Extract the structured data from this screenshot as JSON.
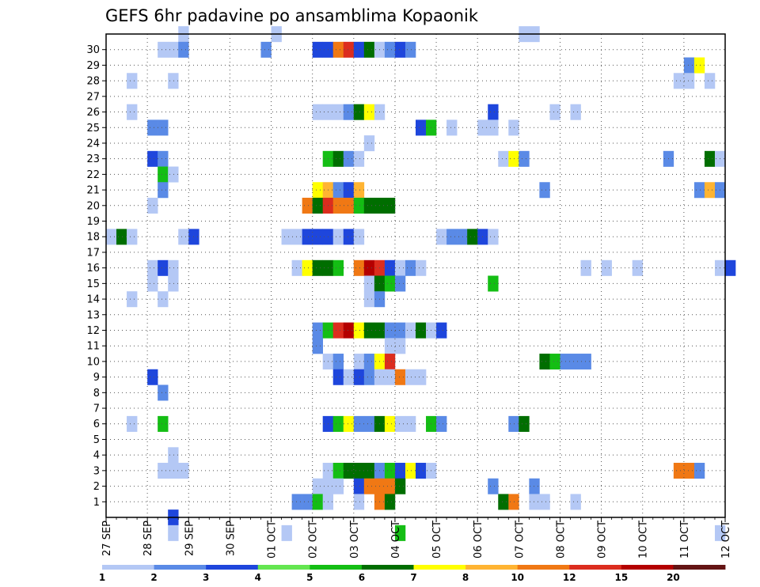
{
  "chart_data": {
    "type": "heatmap",
    "title": "GEFS 6hr padavine po ansamblima Kopaonik",
    "xlabel": "",
    "ylabel": "",
    "y_ticks": [
      "1",
      "2",
      "3",
      "4",
      "5",
      "6",
      "7",
      "8",
      "9",
      "10",
      "11",
      "12",
      "13",
      "14",
      "15",
      "16",
      "17",
      "18",
      "19",
      "20",
      "21",
      "22",
      "23",
      "24",
      "25",
      "26",
      "27",
      "28",
      "29",
      "30"
    ],
    "x_ticks": [
      "27 SEP",
      "28 SEP",
      "29 SEP",
      "30 SEP",
      "01 OCT",
      "02 OCT",
      "03 OCT",
      "04 OCT",
      "05 OCT",
      "06 OCT",
      "07 OCT",
      "08 OCT",
      "09 OCT",
      "10 OCT",
      "11 OCT",
      "12 OCT"
    ],
    "x_unit": "6-hour steps from 27 SEP 00Z (4 steps per day)",
    "colorbar": {
      "labels": [
        "1",
        "2",
        "3",
        "4",
        "5",
        "6",
        "7",
        "8",
        "10",
        "12",
        "15",
        "20"
      ],
      "colors": [
        "#b4c8f5",
        "#5a8ae6",
        "#1e46dc",
        "#64e650",
        "#14be14",
        "#006e00",
        "#ffff00",
        "#ffb432",
        "#f07814",
        "#dc2d1e",
        "#b40000",
        "#641414"
      ]
    },
    "grid": "dotted",
    "cells": [
      {
        "m": 30,
        "c": [
          [
            7,
            0
          ],
          [
            16,
            0
          ],
          [
            40,
            0
          ],
          [
            41,
            0
          ]
        ]
      },
      {
        "m": 29,
        "c": [
          [
            5,
            0
          ],
          [
            6,
            0
          ],
          [
            7,
            1
          ],
          [
            15,
            1
          ],
          [
            20,
            2
          ],
          [
            21,
            2
          ],
          [
            22,
            8
          ],
          [
            23,
            9
          ],
          [
            24,
            2
          ],
          [
            25,
            5
          ],
          [
            26,
            0
          ],
          [
            27,
            1
          ],
          [
            28,
            2
          ],
          [
            29,
            1
          ]
        ]
      },
      {
        "m": 28,
        "c": [
          [
            56,
            1
          ],
          [
            57,
            6
          ]
        ]
      },
      {
        "m": 27,
        "c": [
          [
            2,
            0
          ],
          [
            6,
            0
          ],
          [
            55,
            0
          ],
          [
            56,
            0
          ],
          [
            58,
            0
          ]
        ]
      },
      {
        "m": 25,
        "c": [
          [
            2,
            0
          ],
          [
            20,
            0
          ],
          [
            21,
            0
          ],
          [
            22,
            0
          ],
          [
            23,
            1
          ],
          [
            24,
            5
          ],
          [
            25,
            6
          ],
          [
            26,
            0
          ],
          [
            37,
            2
          ],
          [
            43,
            0
          ],
          [
            45,
            0
          ]
        ]
      },
      {
        "m": 24,
        "c": [
          [
            4,
            1
          ],
          [
            5,
            1
          ],
          [
            30,
            2
          ],
          [
            31,
            4
          ],
          [
            33,
            0
          ],
          [
            36,
            0
          ],
          [
            37,
            0
          ],
          [
            39,
            0
          ]
        ]
      },
      {
        "m": 23,
        "c": [
          [
            25,
            0
          ]
        ]
      },
      {
        "m": 22,
        "c": [
          [
            4,
            2
          ],
          [
            5,
            1
          ],
          [
            21,
            4
          ],
          [
            22,
            5
          ],
          [
            23,
            1
          ],
          [
            24,
            0
          ],
          [
            38,
            0
          ],
          [
            39,
            6
          ],
          [
            40,
            1
          ],
          [
            54,
            1
          ],
          [
            58,
            5
          ],
          [
            59,
            0
          ]
        ]
      },
      {
        "m": 21,
        "c": [
          [
            5,
            4
          ],
          [
            6,
            0
          ]
        ]
      },
      {
        "m": 20,
        "c": [
          [
            5,
            1
          ],
          [
            20,
            6
          ],
          [
            21,
            7
          ],
          [
            22,
            1
          ],
          [
            23,
            2
          ],
          [
            24,
            7
          ],
          [
            42,
            1
          ],
          [
            57,
            1
          ],
          [
            58,
            7
          ],
          [
            59,
            1
          ]
        ]
      },
      {
        "m": 19,
        "c": [
          [
            4,
            0
          ],
          [
            19,
            8
          ],
          [
            20,
            5
          ],
          [
            21,
            9
          ],
          [
            22,
            8
          ],
          [
            23,
            8
          ],
          [
            24,
            4
          ],
          [
            25,
            5
          ],
          [
            26,
            5
          ],
          [
            27,
            5
          ]
        ]
      },
      {
        "m": 18,
        "c": []
      },
      {
        "m": 17,
        "c": [
          [
            0,
            0
          ],
          [
            1,
            5
          ],
          [
            2,
            0
          ],
          [
            7,
            0
          ],
          [
            8,
            2
          ],
          [
            17,
            0
          ],
          [
            18,
            0
          ],
          [
            19,
            2
          ],
          [
            20,
            2
          ],
          [
            21,
            2
          ],
          [
            22,
            0
          ],
          [
            23,
            2
          ],
          [
            24,
            0
          ],
          [
            32,
            0
          ],
          [
            33,
            1
          ],
          [
            34,
            1
          ],
          [
            35,
            5
          ],
          [
            36,
            2
          ],
          [
            37,
            0
          ]
        ]
      },
      {
        "m": 16,
        "c": []
      },
      {
        "m": 15,
        "c": [
          [
            4,
            0
          ],
          [
            5,
            2
          ],
          [
            6,
            0
          ],
          [
            18,
            0
          ],
          [
            19,
            6
          ],
          [
            20,
            5
          ],
          [
            21,
            5
          ],
          [
            22,
            4
          ],
          [
            24,
            8
          ],
          [
            25,
            10
          ],
          [
            26,
            9
          ],
          [
            27,
            2
          ],
          [
            28,
            0
          ],
          [
            29,
            1
          ],
          [
            30,
            0
          ],
          [
            46,
            0
          ],
          [
            48,
            0
          ],
          [
            51,
            0
          ],
          [
            59,
            0
          ],
          [
            60,
            2
          ]
        ]
      },
      {
        "m": 14,
        "c": [
          [
            4,
            0
          ],
          [
            6,
            0
          ],
          [
            25,
            0
          ],
          [
            26,
            5
          ],
          [
            27,
            4
          ],
          [
            28,
            1
          ],
          [
            37,
            4
          ]
        ]
      },
      {
        "m": 13,
        "c": [
          [
            2,
            0
          ],
          [
            5,
            0
          ],
          [
            25,
            0
          ],
          [
            26,
            1
          ]
        ]
      },
      {
        "m": 12,
        "c": []
      },
      {
        "m": 11,
        "c": [
          [
            20,
            1
          ],
          [
            21,
            4
          ],
          [
            22,
            9
          ],
          [
            23,
            10
          ],
          [
            24,
            6
          ],
          [
            25,
            5
          ],
          [
            26,
            5
          ],
          [
            27,
            1
          ],
          [
            28,
            1
          ],
          [
            29,
            0
          ],
          [
            30,
            5
          ],
          [
            31,
            0
          ],
          [
            32,
            2
          ]
        ]
      },
      {
        "m": 10,
        "c": [
          [
            20,
            1
          ],
          [
            27,
            0
          ],
          [
            28,
            0
          ]
        ]
      },
      {
        "m": 9,
        "c": [
          [
            21,
            0
          ],
          [
            22,
            1
          ],
          [
            24,
            0
          ],
          [
            25,
            1
          ],
          [
            26,
            6
          ],
          [
            27,
            9
          ],
          [
            42,
            5
          ],
          [
            43,
            4
          ],
          [
            44,
            1
          ],
          [
            45,
            1
          ],
          [
            46,
            1
          ]
        ]
      },
      {
        "m": 8,
        "c": [
          [
            4,
            2
          ],
          [
            22,
            2
          ],
          [
            23,
            0
          ],
          [
            24,
            2
          ],
          [
            25,
            1
          ],
          [
            26,
            0
          ],
          [
            27,
            0
          ],
          [
            28,
            8
          ],
          [
            29,
            0
          ],
          [
            30,
            0
          ]
        ]
      },
      {
        "m": 7,
        "c": [
          [
            5,
            1
          ]
        ]
      },
      {
        "m": 6,
        "c": []
      },
      {
        "m": 5,
        "c": [
          [
            2,
            0
          ],
          [
            5,
            4
          ],
          [
            21,
            2
          ],
          [
            22,
            4
          ],
          [
            23,
            6
          ],
          [
            24,
            1
          ],
          [
            25,
            1
          ],
          [
            26,
            5
          ],
          [
            27,
            6
          ],
          [
            28,
            0
          ],
          [
            29,
            0
          ],
          [
            31,
            4
          ],
          [
            32,
            1
          ],
          [
            39,
            1
          ],
          [
            40,
            5
          ]
        ]
      },
      {
        "m": 4,
        "c": []
      },
      {
        "m": 3,
        "c": [
          [
            6,
            0
          ]
        ]
      },
      {
        "m": 2,
        "c": [
          [
            5,
            0
          ],
          [
            6,
            0
          ],
          [
            7,
            0
          ],
          [
            21,
            0
          ],
          [
            22,
            4
          ],
          [
            23,
            5
          ],
          [
            24,
            5
          ],
          [
            25,
            5
          ],
          [
            26,
            1
          ],
          [
            27,
            4
          ],
          [
            28,
            2
          ],
          [
            29,
            6
          ],
          [
            30,
            2
          ],
          [
            31,
            0
          ],
          [
            55,
            8
          ],
          [
            56,
            8
          ],
          [
            57,
            1
          ]
        ]
      },
      {
        "m": 1,
        "c": [
          [
            20,
            0
          ],
          [
            21,
            0
          ],
          [
            22,
            0
          ],
          [
            24,
            2
          ],
          [
            25,
            8
          ],
          [
            26,
            8
          ],
          [
            27,
            8
          ],
          [
            28,
            5
          ],
          [
            37,
            1
          ],
          [
            41,
            1
          ]
        ]
      },
      {
        "m": 0,
        "c": [
          [
            18,
            1
          ],
          [
            19,
            1
          ],
          [
            20,
            4
          ],
          [
            21,
            0
          ],
          [
            24,
            0
          ],
          [
            26,
            8
          ],
          [
            27,
            5
          ],
          [
            38,
            5
          ],
          [
            39,
            8
          ],
          [
            41,
            0
          ],
          [
            42,
            0
          ],
          [
            45,
            0
          ]
        ]
      },
      {
        "m": -1,
        "c": [
          [
            6,
            2
          ]
        ]
      },
      {
        "m": -2,
        "c": [
          [
            6,
            0
          ],
          [
            17,
            0
          ],
          [
            28,
            4
          ],
          [
            59,
            0
          ]
        ]
      }
    ]
  }
}
